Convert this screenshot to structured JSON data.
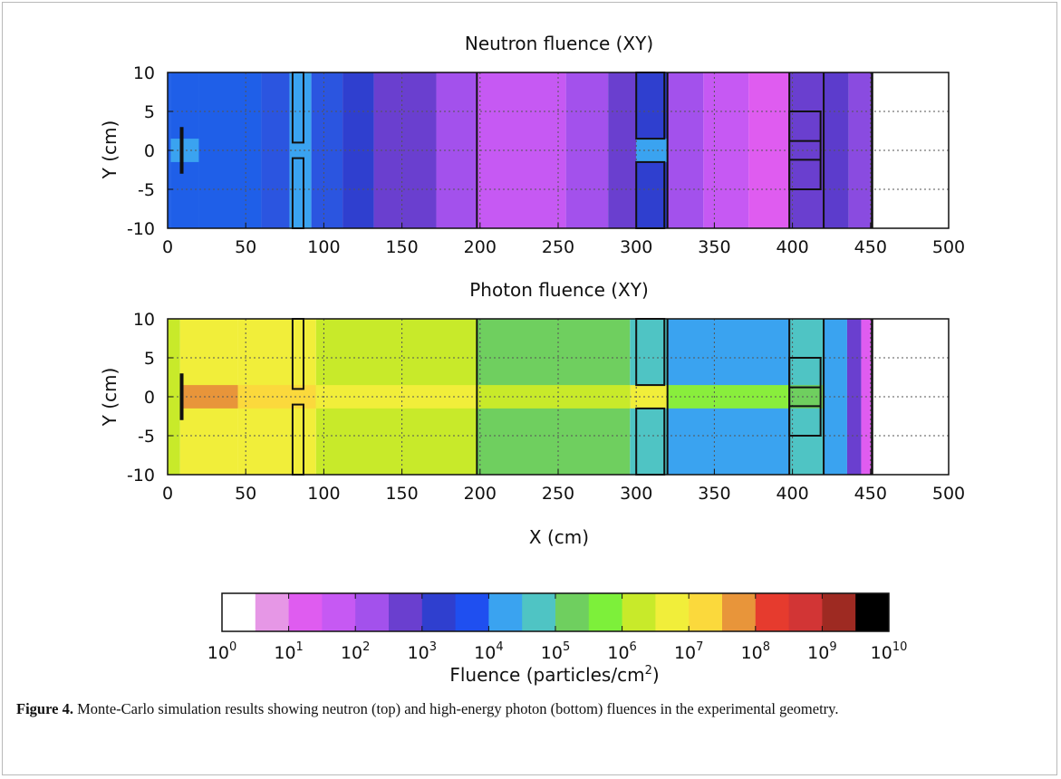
{
  "chart_data": [
    {
      "type": "heatmap",
      "title": "Neutron fluence (XY)",
      "xlabel": "",
      "ylabel": "Y (cm)",
      "xlim": [
        0,
        500
      ],
      "ylim": [
        -10,
        10
      ],
      "x_ticks": [
        "0",
        "50",
        "100",
        "150",
        "200",
        "250",
        "300",
        "350",
        "400",
        "450",
        "500"
      ],
      "y_ticks": [
        "10",
        "5",
        "0",
        "-5",
        "-10"
      ],
      "grid": true,
      "x_bins": [
        {
          "x0": 0,
          "x1": 2,
          "bin": 6,
          "color": "#1f5fe8"
        },
        {
          "x0": 2,
          "x1": 20,
          "bin": 6,
          "color": "#1f5fe8",
          "core_bin": 7,
          "core_color": "#3aa3f0"
        },
        {
          "x0": 20,
          "x1": 60,
          "bin": 6,
          "color": "#1f5fe8"
        },
        {
          "x0": 60,
          "x1": 78,
          "bin": 6,
          "color": "#2b55e0"
        },
        {
          "x0": 78,
          "x1": 92,
          "bin": 7,
          "color": "#3aa3f0"
        },
        {
          "x0": 92,
          "x1": 112,
          "bin": 6,
          "color": "#2b55e0"
        },
        {
          "x0": 112,
          "x1": 132,
          "bin": 5,
          "color": "#2f3fcf"
        },
        {
          "x0": 132,
          "x1": 172,
          "bin": 4,
          "color": "#6a3fcf"
        },
        {
          "x0": 172,
          "x1": 198,
          "bin": 3,
          "color": "#a351ec"
        },
        {
          "x0": 198,
          "x1": 255,
          "bin": 2,
          "color": "#c659f3"
        },
        {
          "x0": 255,
          "x1": 282,
          "bin": 3,
          "color": "#a351ec"
        },
        {
          "x0": 282,
          "x1": 300,
          "bin": 4,
          "color": "#6a3fcf"
        },
        {
          "x0": 300,
          "x1": 320,
          "bin": 5,
          "color": "#2f3fcf",
          "core_bin": 7,
          "core_color": "#3aa3f0"
        },
        {
          "x0": 320,
          "x1": 343,
          "bin": 3,
          "color": "#a351ec"
        },
        {
          "x0": 343,
          "x1": 372,
          "bin": 2,
          "color": "#c659f3"
        },
        {
          "x0": 372,
          "x1": 398,
          "bin": 1,
          "color": "#df5cf0"
        },
        {
          "x0": 398,
          "x1": 420,
          "bin": 4,
          "color": "#6a3fcf"
        },
        {
          "x0": 420,
          "x1": 436,
          "bin": 4,
          "color": "#5c3ccc"
        },
        {
          "x0": 436,
          "x1": 451,
          "bin": 3,
          "color": "#8a4be0"
        },
        {
          "x0": 451,
          "x1": 500,
          "bin": 0,
          "color": "#ffffff"
        }
      ]
    },
    {
      "type": "heatmap",
      "title": "Photon fluence (XY)",
      "xlabel": "X (cm)",
      "ylabel": "Y (cm)",
      "xlim": [
        0,
        500
      ],
      "ylim": [
        -10,
        10
      ],
      "x_ticks": [
        "0",
        "50",
        "100",
        "150",
        "200",
        "250",
        "300",
        "350",
        "400",
        "450",
        "500"
      ],
      "y_ticks": [
        "10",
        "5",
        "0",
        "-5",
        "-10"
      ],
      "grid": true,
      "x_bins": [
        {
          "x0": 0,
          "x1": 8,
          "bin": 11,
          "color": "#c8ea2a"
        },
        {
          "x0": 8,
          "x1": 45,
          "bin": 12,
          "color": "#f1ee3a",
          "core_bin": 15,
          "core_color": "#e8953a"
        },
        {
          "x0": 45,
          "x1": 95,
          "bin": 12,
          "color": "#f1ee3a",
          "core_bin": 13,
          "core_color": "#fbd93c"
        },
        {
          "x0": 95,
          "x1": 198,
          "bin": 11,
          "color": "#c8ea2a",
          "core_bin": 12,
          "core_color": "#f1ee3a"
        },
        {
          "x0": 198,
          "x1": 296,
          "bin": 9,
          "color": "#6fcf5f",
          "core_bin": 11,
          "core_color": "#c8ea2a"
        },
        {
          "x0": 296,
          "x1": 320,
          "bin": 8,
          "color": "#4fc4c4",
          "core_bin": 12,
          "core_color": "#f1ee3a"
        },
        {
          "x0": 320,
          "x1": 398,
          "bin": 7,
          "color": "#3aa3f0",
          "core_bin": 10,
          "core_color": "#89ee3c"
        },
        {
          "x0": 398,
          "x1": 420,
          "bin": 8,
          "color": "#4fc4c4",
          "core_bin": 9,
          "core_color": "#6fcf5f"
        },
        {
          "x0": 420,
          "x1": 435,
          "bin": 7,
          "color": "#3aa3f0"
        },
        {
          "x0": 435,
          "x1": 444,
          "bin": 4,
          "color": "#6a3fcf"
        },
        {
          "x0": 444,
          "x1": 451,
          "bin": 1,
          "color": "#df5cf0"
        },
        {
          "x0": 451,
          "x1": 500,
          "bin": 0,
          "color": "#ffffff"
        }
      ]
    }
  ],
  "colorbar": {
    "label": "Fluence (particles/cm",
    "label_sup": "2",
    "label_end": ")",
    "exponents": [
      "0",
      "1",
      "2",
      "3",
      "4",
      "5",
      "6",
      "7",
      "8",
      "9",
      "10"
    ],
    "base": "10",
    "colors": [
      "#ffffff",
      "#e697e6",
      "#df5cf0",
      "#c659f3",
      "#a351ec",
      "#6a3fcf",
      "#2f3fcf",
      "#1f4ff0",
      "#3aa3f0",
      "#4fc4c4",
      "#6fcf5f",
      "#7df03a",
      "#c8ea2a",
      "#f1ee3a",
      "#fbd93c",
      "#e8953a",
      "#e63b2e",
      "#d23535",
      "#9e2a22",
      "#000000"
    ]
  },
  "caption": {
    "label": "Figure 4.",
    "text": " Monte-Carlo simulation results showing neutron (top) and high-energy photon (bottom) fluences in the experimental geometry."
  }
}
